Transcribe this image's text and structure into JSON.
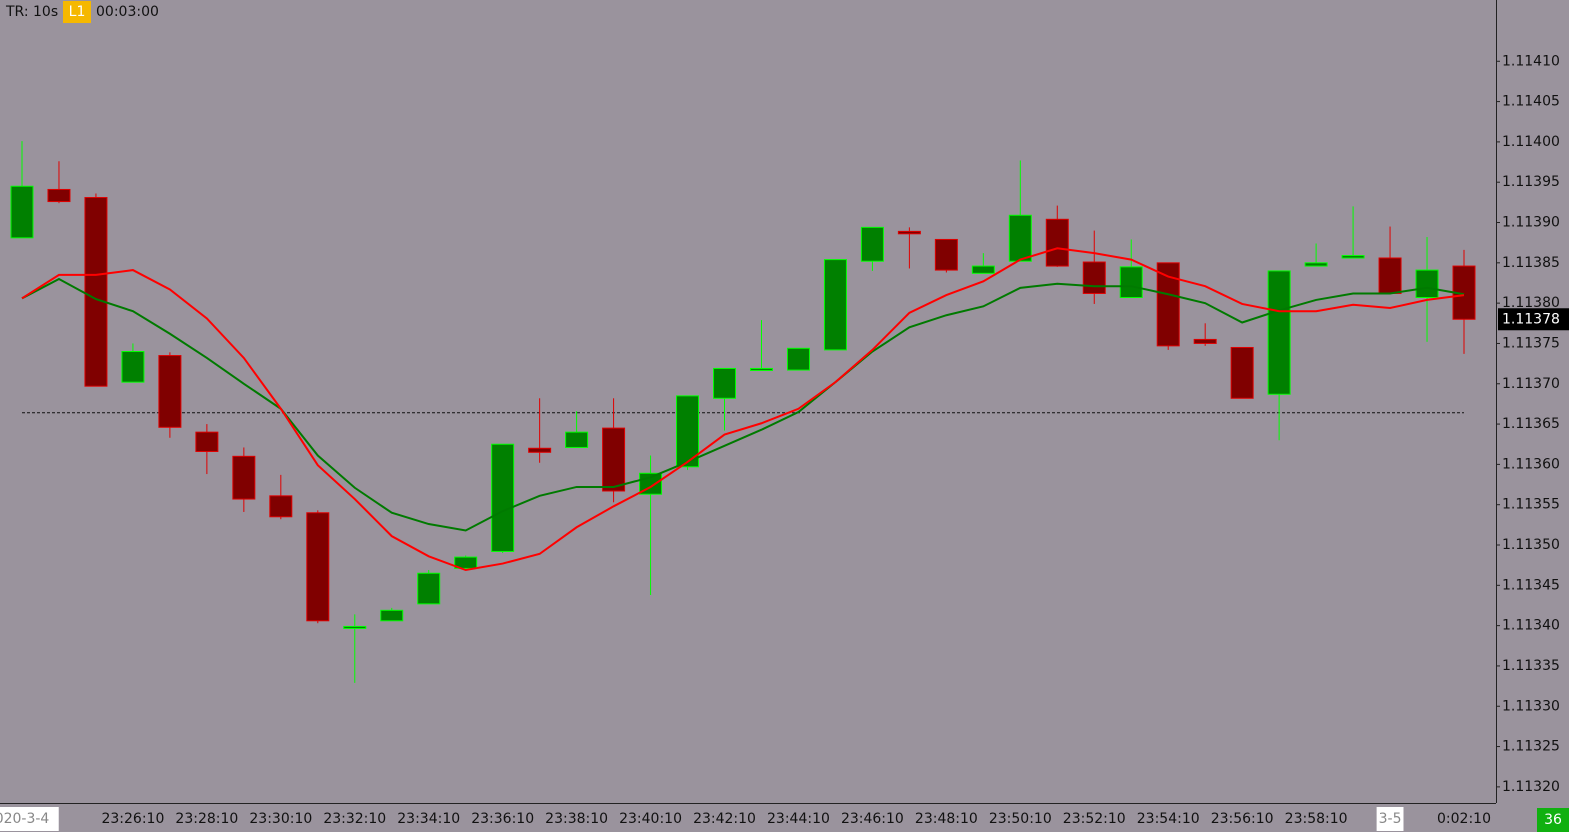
{
  "chart_data": {
    "type": "candlestick",
    "range_label": "TR: 10s",
    "level_label": "L1",
    "timer": "00:03:00",
    "counter": 36,
    "categories": [
      "020-3-4",
      null,
      null,
      "23:26:10",
      null,
      "23:28:10",
      null,
      "23:30:10",
      null,
      "23:32:10",
      null,
      "23:34:10",
      null,
      "23:36:10",
      null,
      "23:38:10",
      null,
      "23:40:10",
      null,
      "23:42:10",
      null,
      "23:44:10",
      null,
      "23:46:10",
      null,
      "23:48:10",
      null,
      "23:50:10",
      null,
      "23:52:10",
      null,
      "23:54:10",
      null,
      "23:56:10",
      null,
      "23:58:10",
      null,
      "3-5",
      null,
      "0:02:10"
    ],
    "open": [
      1.113881,
      1.113941,
      1.113931,
      1.113702,
      1.113735,
      1.11364,
      1.11361,
      1.113561,
      1.11354,
      1.113397,
      1.113406,
      1.113427,
      1.113471,
      1.113492,
      1.11362,
      1.113621,
      1.113645,
      1.113563,
      1.113597,
      1.113682,
      1.113717,
      1.113717,
      1.113742,
      1.113852,
      1.113889,
      1.113879,
      1.113837,
      1.113852,
      1.113904,
      1.113851,
      1.113807,
      1.11385,
      1.113755,
      1.113745,
      1.113687,
      1.113846,
      1.113856,
      1.113856,
      1.113807,
      1.113846
    ],
    "high": [
      1.114001,
      1.113976,
      1.113936,
      1.11375,
      1.113739,
      1.11365,
      1.113621,
      1.113587,
      1.113543,
      1.113414,
      1.113422,
      1.113469,
      1.113487,
      1.113625,
      1.113682,
      1.113666,
      1.113682,
      1.113611,
      1.113685,
      1.113719,
      1.113779,
      1.113744,
      1.113854,
      1.113894,
      1.113894,
      1.113879,
      1.113862,
      1.113977,
      1.113921,
      1.11389,
      1.113879,
      1.11385,
      1.113775,
      1.113745,
      1.11384,
      1.113874,
      1.11392,
      1.113895,
      1.113882,
      1.113866
    ],
    "low": [
      1.113881,
      1.113924,
      1.113697,
      1.113702,
      1.113633,
      1.113588,
      1.113541,
      1.113532,
      1.113403,
      1.113329,
      1.113406,
      1.113427,
      1.113471,
      1.11349,
      1.113602,
      1.113621,
      1.113553,
      1.113438,
      1.113593,
      1.113642,
      1.113717,
      1.113717,
      1.113742,
      1.11384,
      1.113843,
      1.113838,
      1.113837,
      1.113852,
      1.113845,
      1.113799,
      1.113807,
      1.113742,
      1.113747,
      1.113682,
      1.11363,
      1.113846,
      1.113856,
      1.113812,
      1.113752,
      1.113737
    ],
    "close": [
      1.113945,
      1.113926,
      1.113697,
      1.11374,
      1.113646,
      1.113616,
      1.113557,
      1.113535,
      1.113406,
      1.113399,
      1.113419,
      1.113465,
      1.113485,
      1.113625,
      1.113615,
      1.11364,
      1.113567,
      1.113589,
      1.113685,
      1.113719,
      1.113719,
      1.113744,
      1.113854,
      1.113894,
      1.113886,
      1.113841,
      1.113846,
      1.113909,
      1.113846,
      1.113812,
      1.113845,
      1.113747,
      1.11375,
      1.113682,
      1.11384,
      1.11385,
      1.113859,
      1.113812,
      1.113841,
      1.11378
    ],
    "up_color": "#008000",
    "up_border": "#00ff00",
    "down_color": "#800000",
    "down_border": "#e00000",
    "series": [
      {
        "color": "#007a00",
        "values": [
          1.113806,
          1.11383,
          1.113805,
          1.11379,
          1.113762,
          1.113732,
          1.1137,
          1.113669,
          1.113611,
          1.113571,
          1.11354,
          1.113526,
          1.113518,
          1.113542,
          1.113561,
          1.113572,
          1.113572,
          1.113584,
          1.113603,
          1.113623,
          1.113643,
          1.113665,
          1.113702,
          1.11374,
          1.11377,
          1.113785,
          1.113796,
          1.113819,
          1.113824,
          1.113821,
          1.113821,
          1.113811,
          1.1138,
          1.113776,
          1.113791,
          1.113804,
          1.113812,
          1.113812,
          1.113819,
          1.113811
        ]
      },
      {
        "color": "#ff0000",
        "values": [
          1.113806,
          1.113835,
          1.113835,
          1.113841,
          1.113817,
          1.113781,
          1.113732,
          1.113669,
          1.113599,
          1.113557,
          1.113511,
          1.113486,
          1.113469,
          1.113477,
          1.113489,
          1.113522,
          1.113548,
          1.113572,
          1.113603,
          1.113637,
          1.113651,
          1.113669,
          1.113702,
          1.113742,
          1.113788,
          1.11381,
          1.113827,
          1.113854,
          1.113868,
          1.113862,
          1.113854,
          1.113833,
          1.113821,
          1.113799,
          1.11379,
          1.11379,
          1.113798,
          1.113794,
          1.113804,
          1.11381
        ]
      }
    ],
    "reference_line": 1.113664,
    "last_price": {
      "value": 1.11378,
      "label": "1.11378"
    },
    "ylim": [
      1.11318,
      1.114176
    ],
    "yticks": [
      {
        "value": 1.1132,
        "label": "1.11320"
      },
      {
        "value": 1.11325,
        "label": "1.11325"
      },
      {
        "value": 1.1133,
        "label": "1.11330"
      },
      {
        "value": 1.11335,
        "label": "1.11335"
      },
      {
        "value": 1.1134,
        "label": "1.11340"
      },
      {
        "value": 1.11345,
        "label": "1.11345"
      },
      {
        "value": 1.1135,
        "label": "1.11350"
      },
      {
        "value": 1.11355,
        "label": "1.11355"
      },
      {
        "value": 1.1136,
        "label": "1.11360"
      },
      {
        "value": 1.11365,
        "label": "1.11365"
      },
      {
        "value": 1.1137,
        "label": "1.11370"
      },
      {
        "value": 1.11375,
        "label": "1.11375"
      },
      {
        "value": 1.1138,
        "label": "1.11380"
      },
      {
        "value": 1.11385,
        "label": "1.11385"
      },
      {
        "value": 1.1139,
        "label": "1.11390"
      },
      {
        "value": 1.11395,
        "label": "1.11395"
      },
      {
        "value": 1.114,
        "label": "1.11400"
      },
      {
        "value": 1.11405,
        "label": "1.11405"
      },
      {
        "value": 1.1141,
        "label": "1.11410"
      }
    ]
  }
}
